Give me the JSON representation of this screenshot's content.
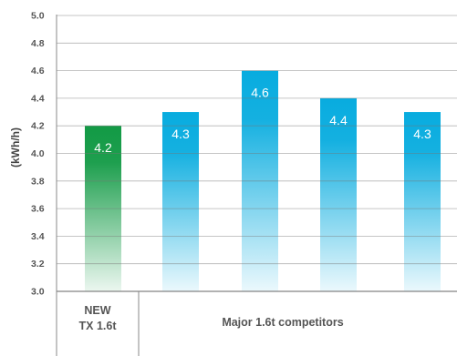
{
  "chart_data": {
    "type": "bar",
    "ylabel": "(kWh/h)",
    "ylim": [
      3.0,
      5.0
    ],
    "yticks": [
      "3.0",
      "3.2",
      "3.4",
      "3.6",
      "3.8",
      "4.0",
      "4.2",
      "4.4",
      "4.6",
      "4.8",
      "5.0"
    ],
    "values": [
      4.2,
      4.3,
      4.6,
      4.4,
      4.3
    ],
    "value_labels": [
      "4.2",
      "4.3",
      "4.6",
      "4.4",
      "4.3"
    ],
    "groups": [
      {
        "label_lines": [
          "NEW",
          "TX 1.6t"
        ],
        "bars": [
          0
        ]
      },
      {
        "label_lines": [
          "Major 1.6t competitors"
        ],
        "bars": [
          1,
          2,
          3,
          4
        ]
      }
    ],
    "grid": true,
    "colors": {
      "highlight": "#129a45",
      "competitor": "#08acdf",
      "grid": "#777777"
    }
  }
}
